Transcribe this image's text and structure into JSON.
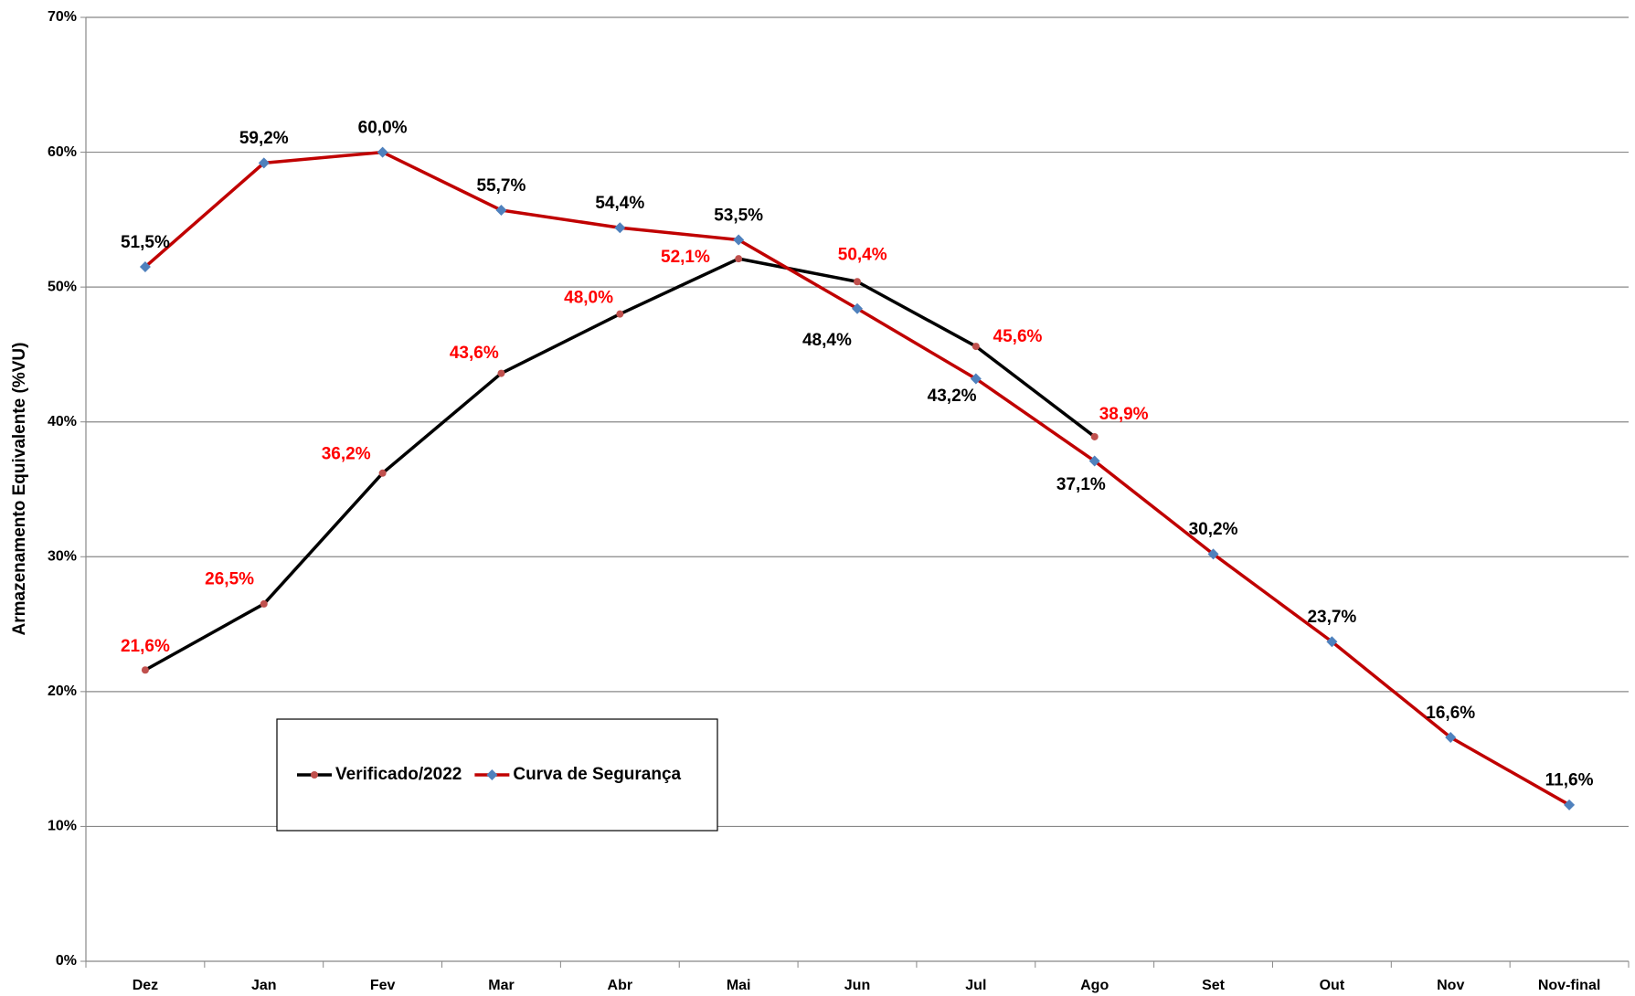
{
  "chart_data": {
    "type": "line",
    "y_axis_label": "Armazenamento Equivalente (%VU)",
    "categories": [
      "Dez",
      "Jan",
      "Fev",
      "Mar",
      "Abr",
      "Mai",
      "Jun",
      "Jul",
      "Ago",
      "Set",
      "Out",
      "Nov",
      "Nov-final"
    ],
    "series": [
      {
        "name": "Verificado/2022",
        "color": "#000000",
        "marker_color": "#c0504d",
        "marker": "circle",
        "label_color": "#ff0000",
        "values": [
          21.6,
          26.5,
          36.2,
          43.6,
          48.0,
          52.1,
          50.4,
          45.6,
          38.9,
          null,
          null,
          null,
          null
        ],
        "value_labels": [
          "21,6%",
          "26,5%",
          "36,2%",
          "43,6%",
          "48,0%",
          "52,1%",
          "50,4%",
          "45,6%",
          "38,9%",
          null,
          null,
          null,
          null
        ]
      },
      {
        "name": "Curva de Segurança",
        "color": "#c00000",
        "marker_color": "#4f81bd",
        "marker": "diamond",
        "label_color": "#000000",
        "values": [
          51.5,
          59.2,
          60.0,
          55.7,
          54.4,
          53.5,
          48.4,
          43.2,
          37.1,
          30.2,
          23.7,
          16.6,
          11.6
        ],
        "value_labels": [
          "51,5%",
          "59,2%",
          "60,0%",
          "55,7%",
          "54,4%",
          "53,5%",
          "48,4%",
          "43,2%",
          "37,1%",
          "30,2%",
          "23,7%",
          "16,6%",
          "11,6%"
        ]
      }
    ],
    "ylim": [
      0,
      70
    ],
    "yticks": [
      {
        "value": 0,
        "label": "0%"
      },
      {
        "value": 10,
        "label": "10%"
      },
      {
        "value": 20,
        "label": "20%"
      },
      {
        "value": 30,
        "label": "30%"
      },
      {
        "value": 40,
        "label": "40%"
      },
      {
        "value": 50,
        "label": "50%"
      },
      {
        "value": 60,
        "label": "60%"
      },
      {
        "value": 70,
        "label": "70%"
      }
    ],
    "grid": true,
    "legend": "lower left"
  }
}
